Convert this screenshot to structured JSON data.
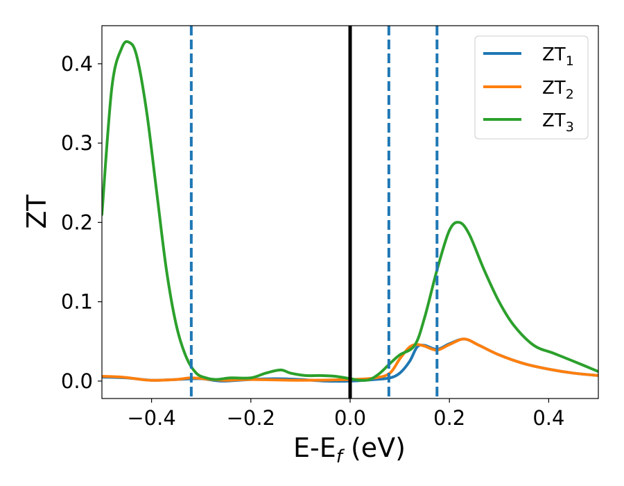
{
  "chart_data": {
    "type": "line",
    "xlabel": "E-E",
    "xlabel_sub": "f",
    "xlabel_suffix": " (eV)",
    "ylabel": "ZT",
    "xlim": [
      -0.5,
      0.5
    ],
    "ylim": [
      -0.022,
      0.448
    ],
    "x_ticks": [
      -0.4,
      -0.2,
      0.0,
      0.2,
      0.4
    ],
    "x_tick_labels": [
      "−0.4",
      "−0.2",
      "0.0",
      "0.2",
      "0.4"
    ],
    "y_ticks": [
      0.0,
      0.1,
      0.2,
      0.3,
      0.4
    ],
    "y_tick_labels": [
      "0.0",
      "0.1",
      "0.2",
      "0.3",
      "0.4"
    ],
    "grid": false,
    "legend_position": "top-right",
    "vertical_lines": [
      {
        "x": 0.0,
        "style": "solid",
        "color": "#000000"
      },
      {
        "x": -0.32,
        "style": "dashed",
        "color": "#1f77b4"
      },
      {
        "x": 0.078,
        "style": "dashed",
        "color": "#1f77b4"
      },
      {
        "x": 0.175,
        "style": "dashed",
        "color": "#1f77b4"
      }
    ],
    "series": [
      {
        "name": "ZT",
        "name_sub": "1",
        "color": "#1f77b4",
        "x": [
          -0.5,
          -0.45,
          -0.4,
          -0.35,
          -0.3,
          -0.26,
          -0.2,
          -0.15,
          -0.1,
          -0.05,
          0.0,
          0.05,
          0.08,
          0.1,
          0.12,
          0.135,
          0.15,
          0.175,
          0.2,
          0.23,
          0.26,
          0.3,
          0.35,
          0.4,
          0.45,
          0.5
        ],
        "y": [
          0.005,
          0.004,
          0.001,
          0.002,
          0.003,
          0.0,
          0.002,
          0.003,
          0.002,
          0.0,
          0.0,
          0.002,
          0.004,
          0.01,
          0.025,
          0.043,
          0.045,
          0.04,
          0.047,
          0.053,
          0.045,
          0.033,
          0.022,
          0.015,
          0.01,
          0.007
        ]
      },
      {
        "name": "ZT",
        "name_sub": "2",
        "color": "#ff7f0e",
        "x": [
          -0.5,
          -0.46,
          -0.42,
          -0.4,
          -0.35,
          -0.32,
          -0.28,
          -0.25,
          -0.2,
          -0.1,
          0.0,
          0.05,
          0.08,
          0.1,
          0.12,
          0.135,
          0.15,
          0.175,
          0.2,
          0.23,
          0.26,
          0.3,
          0.35,
          0.4,
          0.45,
          0.5
        ],
        "y": [
          0.006,
          0.005,
          0.002,
          0.001,
          0.002,
          0.004,
          0.002,
          0.001,
          0.002,
          0.001,
          0.002,
          0.004,
          0.01,
          0.028,
          0.043,
          0.046,
          0.044,
          0.039,
          0.046,
          0.053,
          0.045,
          0.033,
          0.022,
          0.015,
          0.01,
          0.007
        ]
      },
      {
        "name": "ZT",
        "name_sub": "3",
        "color": "#2ca02c",
        "x": [
          -0.5,
          -0.48,
          -0.46,
          -0.445,
          -0.43,
          -0.41,
          -0.39,
          -0.37,
          -0.35,
          -0.33,
          -0.31,
          -0.29,
          -0.27,
          -0.24,
          -0.2,
          -0.17,
          -0.14,
          -0.12,
          -0.09,
          -0.06,
          -0.03,
          0.0,
          0.02,
          0.04,
          0.06,
          0.08,
          0.1,
          0.13,
          0.15,
          0.175,
          0.2,
          0.22,
          0.24,
          0.27,
          0.3,
          0.33,
          0.37,
          0.41,
          0.45,
          0.5
        ],
        "y": [
          0.21,
          0.37,
          0.42,
          0.427,
          0.41,
          0.34,
          0.24,
          0.14,
          0.07,
          0.03,
          0.01,
          0.004,
          0.002,
          0.004,
          0.004,
          0.01,
          0.014,
          0.01,
          0.007,
          0.007,
          0.006,
          0.003,
          0.001,
          0.002,
          0.01,
          0.022,
          0.033,
          0.045,
          0.08,
          0.14,
          0.19,
          0.2,
          0.185,
          0.14,
          0.1,
          0.07,
          0.045,
          0.035,
          0.025,
          0.012
        ]
      }
    ]
  }
}
